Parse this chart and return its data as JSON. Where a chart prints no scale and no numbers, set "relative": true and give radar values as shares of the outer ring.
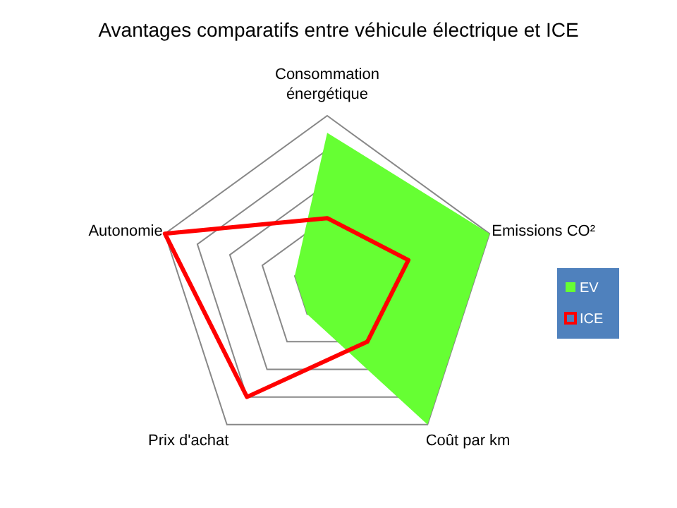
{
  "chart_data": {
    "type": "radar",
    "title": "Avantages comparatifs entre véhicule électrique et ICE",
    "relative": true,
    "categories": [
      "Consommation énergétique",
      "Emissions CO²",
      "Coût par km",
      "Prix d'achat",
      "Autonomie"
    ],
    "series": [
      {
        "name": "EV",
        "type": "area",
        "color": "#66ff33",
        "values": [
          0.9,
          1,
          1,
          0.2,
          0.2
        ]
      },
      {
        "name": "ICE",
        "color": "#ff0000",
        "values": [
          0.4,
          0.5,
          0.4,
          0.8,
          1
        ]
      }
    ],
    "grid": true,
    "legend": "right"
  }
}
